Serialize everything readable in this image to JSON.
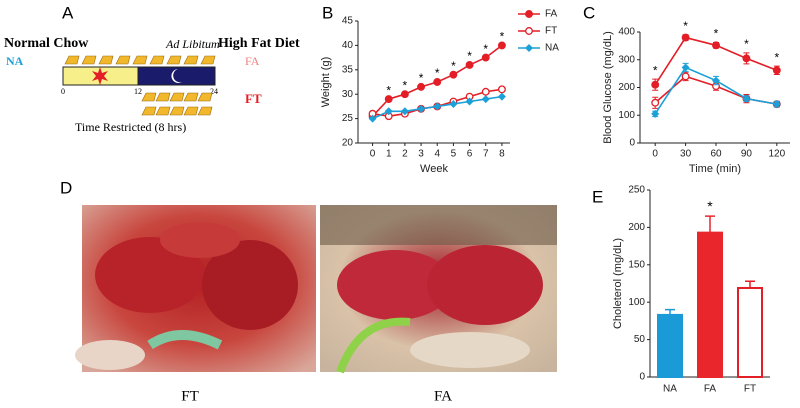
{
  "panels": {
    "A": {
      "label": "A",
      "left_title": "Normal Chow",
      "left_group": "NA",
      "center_title": "Ad Libitum",
      "right_title": "High Fat Diet",
      "group_fa": "FA",
      "group_ft": "FT",
      "ticks": [
        "0",
        "12",
        "24"
      ],
      "caption": "Time Restricted (8 hrs)"
    },
    "D": {
      "label": "D",
      "captions": [
        "FT",
        "FA"
      ]
    }
  },
  "chart_data": [
    {
      "type": "line",
      "label": "B",
      "xlabel": "Week",
      "ylabel": "Weight (g)",
      "x": [
        0,
        1,
        2,
        3,
        4,
        5,
        6,
        7,
        8
      ],
      "xlim": [
        -0.9,
        8.5
      ],
      "xticks": [
        0,
        1,
        2,
        3,
        4,
        5,
        6,
        7,
        8
      ],
      "ylim": [
        20,
        45
      ],
      "yticks": [
        20,
        25,
        30,
        35,
        40,
        45
      ],
      "legend": "right",
      "series": [
        {
          "name": "FA",
          "color": "#e31e26",
          "marker": "circle",
          "values": [
            25.5,
            29,
            30,
            31.5,
            32.5,
            34,
            36,
            37.5,
            40
          ]
        },
        {
          "name": "FT",
          "color": "#e31e26",
          "marker": "open-circle",
          "values": [
            26,
            25.5,
            26,
            27,
            27.5,
            28.5,
            29.5,
            30.5,
            31
          ]
        },
        {
          "name": "NA",
          "color": "#1ba0d8",
          "marker": "diamond",
          "values": [
            25,
            26.5,
            26.5,
            27,
            27.5,
            28,
            28.5,
            29,
            29.5
          ]
        }
      ],
      "annotations": [
        {
          "x": 1,
          "text": "*"
        },
        {
          "x": 2,
          "text": "*"
        },
        {
          "x": 3,
          "text": "*"
        },
        {
          "x": 4,
          "text": "*"
        },
        {
          "x": 5,
          "text": "*"
        },
        {
          "x": 6,
          "text": "*"
        },
        {
          "x": 7,
          "text": "*"
        },
        {
          "x": 8,
          "text": "*"
        }
      ]
    },
    {
      "type": "line",
      "label": "C",
      "xlabel": "Time (min)",
      "ylabel": "Blood Glucose (mg/dL)",
      "x": [
        0,
        30,
        60,
        90,
        120
      ],
      "xlim": [
        -15,
        133
      ],
      "xticks": [
        0,
        30,
        60,
        90,
        120
      ],
      "ylim": [
        0,
        400
      ],
      "yticks": [
        0,
        100,
        200,
        300,
        400
      ],
      "series": [
        {
          "name": "FA",
          "color": "#e31e26",
          "marker": "circle",
          "values": [
            210,
            380,
            352,
            305,
            262
          ],
          "errors": [
            20,
            10,
            10,
            20,
            15
          ]
        },
        {
          "name": "FT",
          "color": "#e31e26",
          "marker": "open-circle",
          "values": [
            145,
            240,
            205,
            160,
            140
          ],
          "errors": [
            20,
            15,
            15,
            15,
            10
          ]
        },
        {
          "name": "NA",
          "color": "#1ba0d8",
          "marker": "diamond",
          "values": [
            105,
            272,
            225,
            160,
            140
          ],
          "errors": [
            10,
            15,
            15,
            10,
            10
          ]
        }
      ],
      "annotations": [
        {
          "x": 0,
          "text": "*"
        },
        {
          "x": 30,
          "text": "*"
        },
        {
          "x": 60,
          "text": "*"
        },
        {
          "x": 90,
          "text": "*"
        },
        {
          "x": 120,
          "text": "*"
        }
      ]
    },
    {
      "type": "bar",
      "label": "E",
      "ylabel": "Choleterol (mg/dL)",
      "categories": [
        "NA",
        "FA",
        "FT"
      ],
      "values": [
        83,
        193,
        119
      ],
      "errors": [
        7,
        22,
        9
      ],
      "colors": [
        "#1a9ad6",
        "#e8262c",
        "#ffffff"
      ],
      "edgecolors": [
        "#1a9ad6",
        "#e8262c",
        "#e31e26"
      ],
      "ylim": [
        0,
        250
      ],
      "yticks": [
        0,
        50,
        100,
        150,
        200,
        250
      ],
      "annotations": [
        {
          "category": "FA",
          "text": "*"
        }
      ]
    }
  ]
}
